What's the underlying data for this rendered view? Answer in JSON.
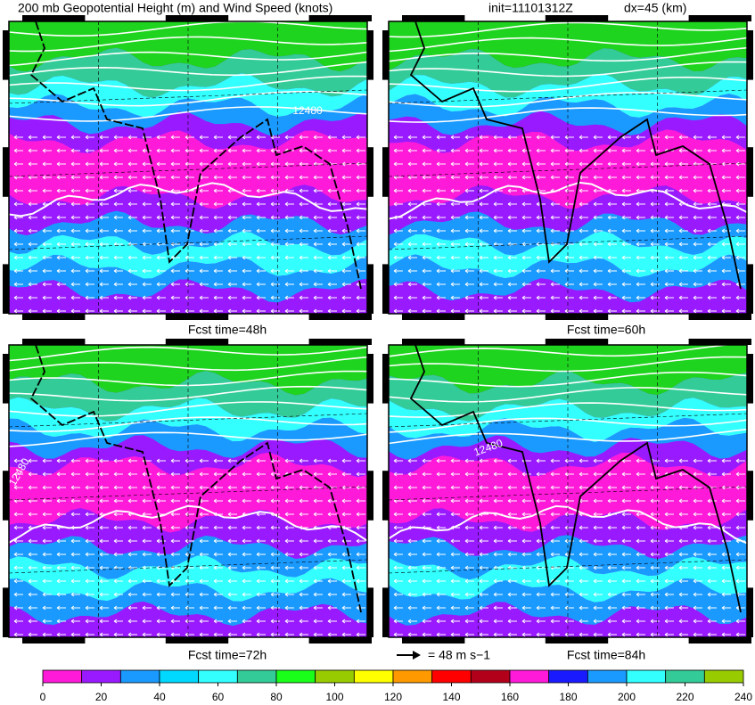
{
  "header": {
    "title": "200 mb Geopotential Height (m) and Wind Speed (knots)",
    "init": "init=11101312Z",
    "dx": "dx=45 (km)"
  },
  "panels": [
    {
      "label": "Fcst time=48h",
      "contour_labels": [
        "12480"
      ]
    },
    {
      "label": "Fcst time=60h",
      "contour_labels": []
    },
    {
      "label": "Fcst time=72h",
      "contour_labels": [
        "12480"
      ]
    },
    {
      "label": "Fcst time=84h",
      "contour_labels": [
        "12480"
      ]
    }
  ],
  "reference_vector": {
    "label": "= 48 m s−1"
  },
  "colorbar": {
    "range": [
      0,
      240
    ],
    "ticks": [
      0,
      20,
      40,
      60,
      80,
      100,
      120,
      140,
      160,
      180,
      200,
      220,
      240
    ],
    "colors": [
      "#ff1ad9",
      "#9a1aff",
      "#1a9aff",
      "#00d9ff",
      "#33ffff",
      "#33cc99",
      "#1aff1a",
      "#99cc00",
      "#ffff00",
      "#ff9900",
      "#ff0000",
      "#b3001a",
      "#ff1ad9",
      "#1a1aff",
      "#1a9aff",
      "#33ffff",
      "#33cc99",
      "#99cc00"
    ]
  }
}
